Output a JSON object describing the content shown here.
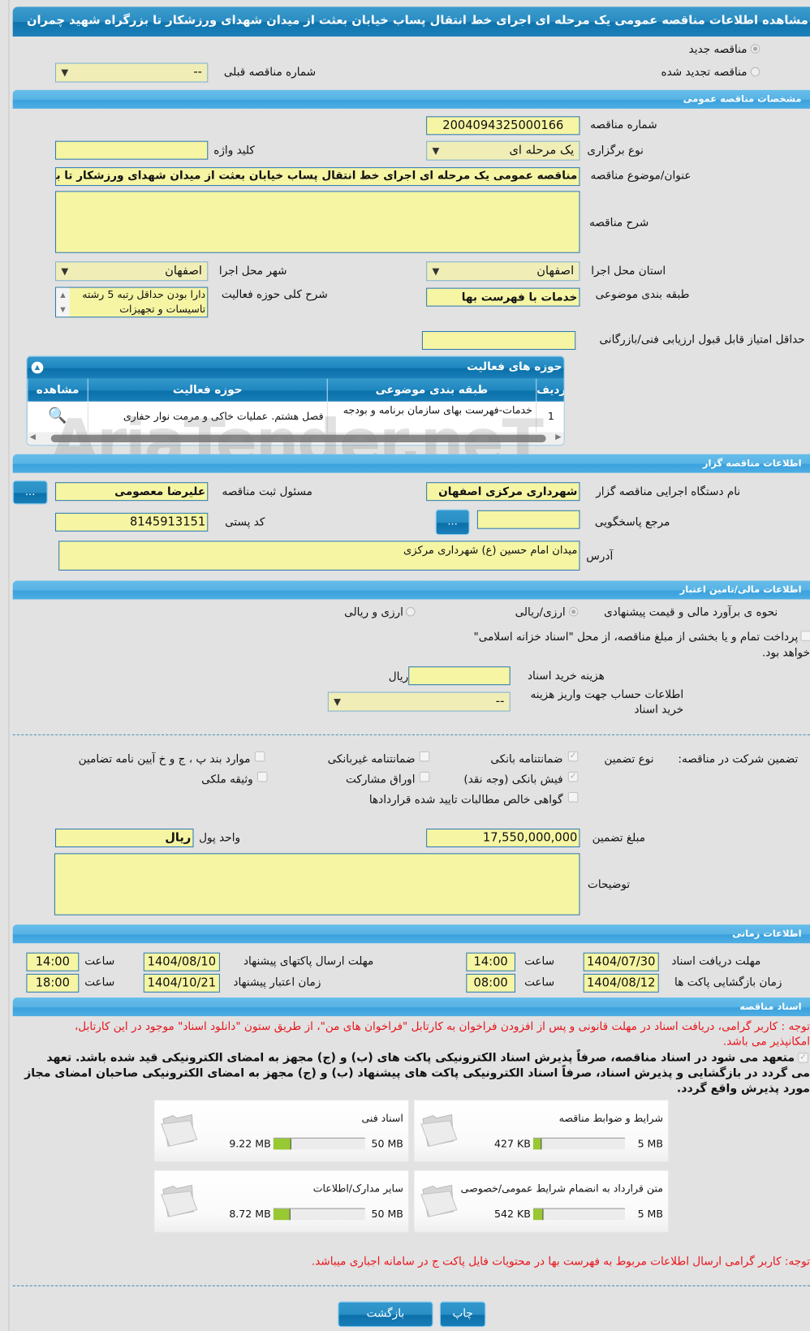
{
  "title": "مشاهده اطلاعات مناقصه عمومی یک مرحله ای اجرای خط انتقال پساب خیابان بعثت از میدان شهدای ورزشکار تا بزرگراه شهید چمران",
  "tender_type": {
    "new_label": "مناقصه جدید",
    "renewed_label": "مناقصه تجدید شده",
    "selected": "new",
    "previous_number_label": "شماره مناقصه قبلی",
    "previous_number_value": "--"
  },
  "general": {
    "section_title": "مشخصات مناقصه عمومی",
    "tender_number_label": "شماره مناقصه",
    "tender_number": "2004094325000166",
    "holding_type_label": "نوع برگزاری",
    "holding_type": "یک مرحله ای",
    "keyword_label": "کلید واژه",
    "keyword": "",
    "subject_label": "عنوان/موضوع مناقصه",
    "subject": "مناقصه عمومی یک مرحله ای اجرای خط انتقال پساب خیابان بعثت از میدان شهدای ورزشکار تا بزرگراه شهید چمران",
    "description_label": "شرح مناقصه",
    "description": "",
    "province_label": "استان محل اجرا",
    "province": "اصفهان",
    "city_label": "شهر محل اجرا",
    "city": "اصفهان",
    "category_label": "طبقه بندی موضوعی",
    "category": "خدمات با فهرست بها",
    "activity_summary_label": "شرح کلی حوزه فعالیت",
    "activity_summary": "دارا بودن حداقل رتبه 5 رشته تاسیسات و تجهیزات",
    "min_score_label": "حداقل امتیاز قابل قبول ارزیابی فنی/بازرگانی",
    "min_score": ""
  },
  "activities": {
    "title": "حوزه های فعالیت",
    "columns": [
      "ردیف",
      "طبقه بندی موضوعی",
      "حوزه فعالیت",
      "مشاهده"
    ],
    "rows": [
      {
        "index": "1",
        "category": "خدمات-فهرست بهای سازمان برنامه و بودجه",
        "field": "فصل هشتم. عملیات خاکی و مرمت نوار حفاری"
      }
    ]
  },
  "organizer": {
    "section_title": "اطلاعات مناقصه گزار",
    "org_label": "نام دستگاه اجرایی مناقصه گزار",
    "org": "شهرداری مرکزی اصفهان",
    "registrar_label": "مسئول ثبت مناقصه",
    "registrar": "علیرضا معصومی",
    "reference_label": "مرجع پاسخگویی",
    "reference": "",
    "postal_label": "کد پستی",
    "postal": "8145913151",
    "address_label": "آدرس",
    "address": "میدان امام حسین (ع) شهرداری مرکزی",
    "browse_label": "..."
  },
  "financial": {
    "section_title": "اطلاعات مالی/تامین اعتبار",
    "estimate_label": "نحوه ی برآورد مالی و قیمت پیشنهادی",
    "opt1": "ارزی/ریالی",
    "opt2": "ارزی و ریالی",
    "selected": "opt1",
    "treasury_text": "پرداخت تمام و یا بخشی از مبلغ مناقصه، از محل \"اسناد خزانه اسلامی\"",
    "treasury_text2": "خواهد بود.",
    "doc_cost_label": "هزینه خرید اسناد",
    "doc_cost": "",
    "doc_cost_unit": "ریال",
    "account_label": "اطلاعات حساب جهت واریز هزینه خرید اسناد",
    "account": "--"
  },
  "guarantee": {
    "label": "تضمین شرکت در مناقصه:",
    "type_label": "نوع تضمین",
    "options": [
      {
        "label": "ضمانتنامه بانکی",
        "checked": true
      },
      {
        "label": "ضمانتنامه غیربانکی",
        "checked": false
      },
      {
        "label": "موارد بند پ ، ج و خ آیین نامه تضامین",
        "checked": false
      },
      {
        "label": "فیش بانکی (وجه نقد)",
        "checked": true
      },
      {
        "label": "اوراق مشارکت",
        "checked": false
      },
      {
        "label": "وثیقه ملکی",
        "checked": false
      },
      {
        "label": "گواهی خالص مطالبات تایید شده قراردادها",
        "checked": false
      }
    ],
    "amount_label": "مبلغ تضمین",
    "amount": "17,550,000,000",
    "currency_label": "واحد پول",
    "currency": "ریال",
    "notes_label": "توضیحات",
    "notes": ""
  },
  "timing": {
    "section_title": "اطلاعات زمانی",
    "hour_label": "ساعت",
    "doc_receive_label": "مهلت دریافت اسناد",
    "doc_receive_date": "1404/07/30",
    "doc_receive_time": "14:00",
    "submit_label": "مهلت ارسال پاکتهای پیشنهاد",
    "submit_date": "1404/08/10",
    "submit_time": "14:00",
    "opening_label": "زمان بازگشایی پاکت ها",
    "opening_date": "1404/08/12",
    "opening_time": "08:00",
    "validity_label": "زمان اعتبار پیشنهاد",
    "validity_date": "1404/10/21",
    "validity_time": "18:00"
  },
  "documents": {
    "section_title": "اسناد مناقصه",
    "notice_line1": "توجه : کاربر گرامی، دریافت اسناد در مهلت قانونی و پس از افزودن فراخوان به کارتابل \"فراخوان های من\"، از طریق ستون \"دانلود اسناد\" موجود در این کارتابل،",
    "notice_line2": "امکانپذیر می باشد.",
    "commit_line1": "متعهد می شود در اسناد مناقصه، صرفاً پذیرش اسناد الکترونیکی پاکت های (ب) و (ج) مجهز به امضای الکترونیکی قید شده باشد. تعهد",
    "commit_line2": "می گردد در بازگشایی و پذیرش اسناد، صرفاً اسناد الکترونیکی پاکت های پیشنهاد (ب) و (ج) مجهز به امضای الکترونیکی صاحبان امضای مجاز",
    "commit_line3": "مورد پذیرش واقع گردد.",
    "files": [
      {
        "title": "شرایط و ضوابط مناقصه",
        "size": "427 KB",
        "max": "5 MB",
        "fill": 0.083
      },
      {
        "title": "اسناد فنی",
        "size": "9.22 MB",
        "max": "50 MB",
        "fill": 0.184
      },
      {
        "title": "متن قرارداد به انضمام شرایط عمومی/خصوصی",
        "size": "542 KB",
        "max": "5 MB",
        "fill": 0.106
      },
      {
        "title": "سایر مدارک/اطلاعات",
        "size": "8.72 MB",
        "max": "50 MB",
        "fill": 0.174
      }
    ],
    "price_notice": "توجه: کاربر گرامی ارسال اطلاعات مربوط به فهرست بها در محتویات فایل پاکت ج در سامانه اجباری میباشد."
  },
  "actions": {
    "back": "بازگشت",
    "print": "چاپ"
  },
  "watermark": "AriaTender.neT",
  "colors": {
    "accent": "#2a8cc2",
    "input_bg": "#f6f5a3",
    "progress": "#98c832",
    "notice": "#e8141b"
  }
}
